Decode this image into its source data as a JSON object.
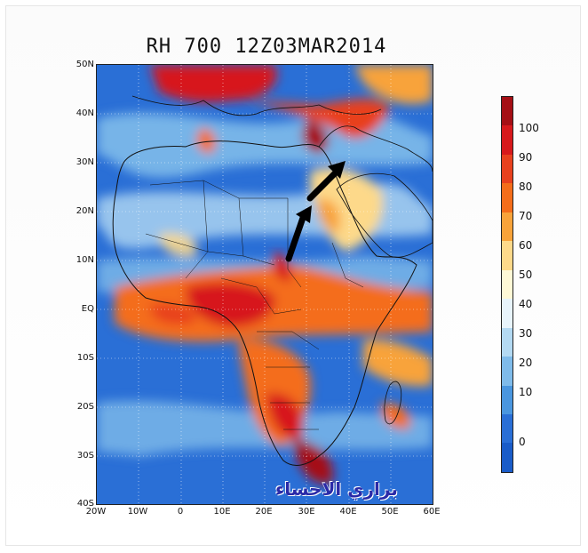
{
  "title": "RH 700 12Z03MAR2014",
  "lat_labels": [
    "50N",
    "40N",
    "30N",
    "20N",
    "10N",
    "EQ",
    "10S",
    "20S",
    "30S",
    "40S"
  ],
  "lon_labels": [
    "20W",
    "10W",
    "0",
    "10E",
    "20E",
    "30E",
    "40E",
    "50E",
    "60E"
  ],
  "colorbar": {
    "labels": [
      "100",
      "90",
      "80",
      "70",
      "60",
      "50",
      "40",
      "30",
      "20",
      "10",
      "0"
    ],
    "colors": [
      "#a50f15",
      "#d7191c",
      "#e8411e",
      "#f46d1a",
      "#f8a33a",
      "#fdd98a",
      "#fff9d6",
      "#e8f4fb",
      "#b3d9f2",
      "#7fbbea",
      "#4a96df",
      "#2a6fd6",
      "#1a5cc8"
    ]
  },
  "watermark": "براري الاحساء",
  "colors": {
    "ocean_blue": "#2a6fd6",
    "moist_red": "#d7191c"
  }
}
